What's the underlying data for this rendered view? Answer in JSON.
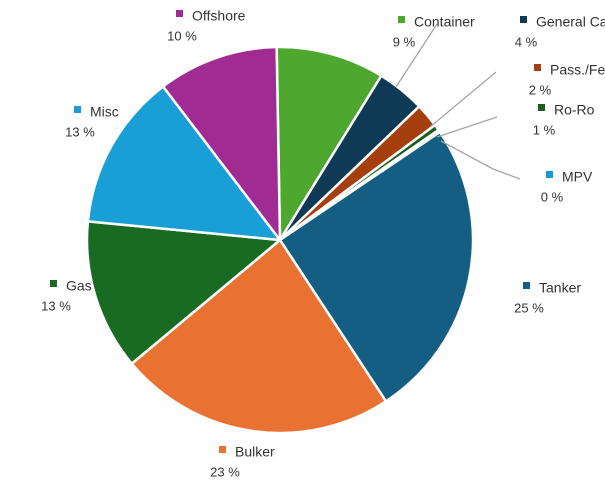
{
  "chart_data": {
    "type": "pie",
    "title": "",
    "slices": [
      {
        "name": "Container",
        "value": 9,
        "display": "9 %",
        "color": "#4EA72E"
      },
      {
        "name": "General Cargo",
        "value": 4,
        "display": "4 %",
        "color": "#0E3A55"
      },
      {
        "name": "Pass./Ferry",
        "value": 2,
        "display": "2 %",
        "color": "#A5400E"
      },
      {
        "name": "Ro-Ro",
        "value": 0.5,
        "display": "1 %",
        "color": "#1B5E20"
      },
      {
        "name": "MPV",
        "value": 0.2,
        "display": "0 %",
        "color": "#0F9ED5"
      },
      {
        "name": "Tanker",
        "value": 25,
        "display": "25 %",
        "color": "#155E83"
      },
      {
        "name": "Bulker",
        "value": 23,
        "display": "23 %",
        "color": "#E97132"
      },
      {
        "name": "Gas",
        "value": 12.5,
        "display": "13 %",
        "color": "#196B24"
      },
      {
        "name": "Misc",
        "value": 13,
        "display": "13 %",
        "color": "#1A9ED6"
      },
      {
        "name": "Offshore",
        "value": 10,
        "display": "10 %",
        "color": "#A02B93"
      }
    ],
    "legend": "labels-outside-with-leader-lines"
  }
}
